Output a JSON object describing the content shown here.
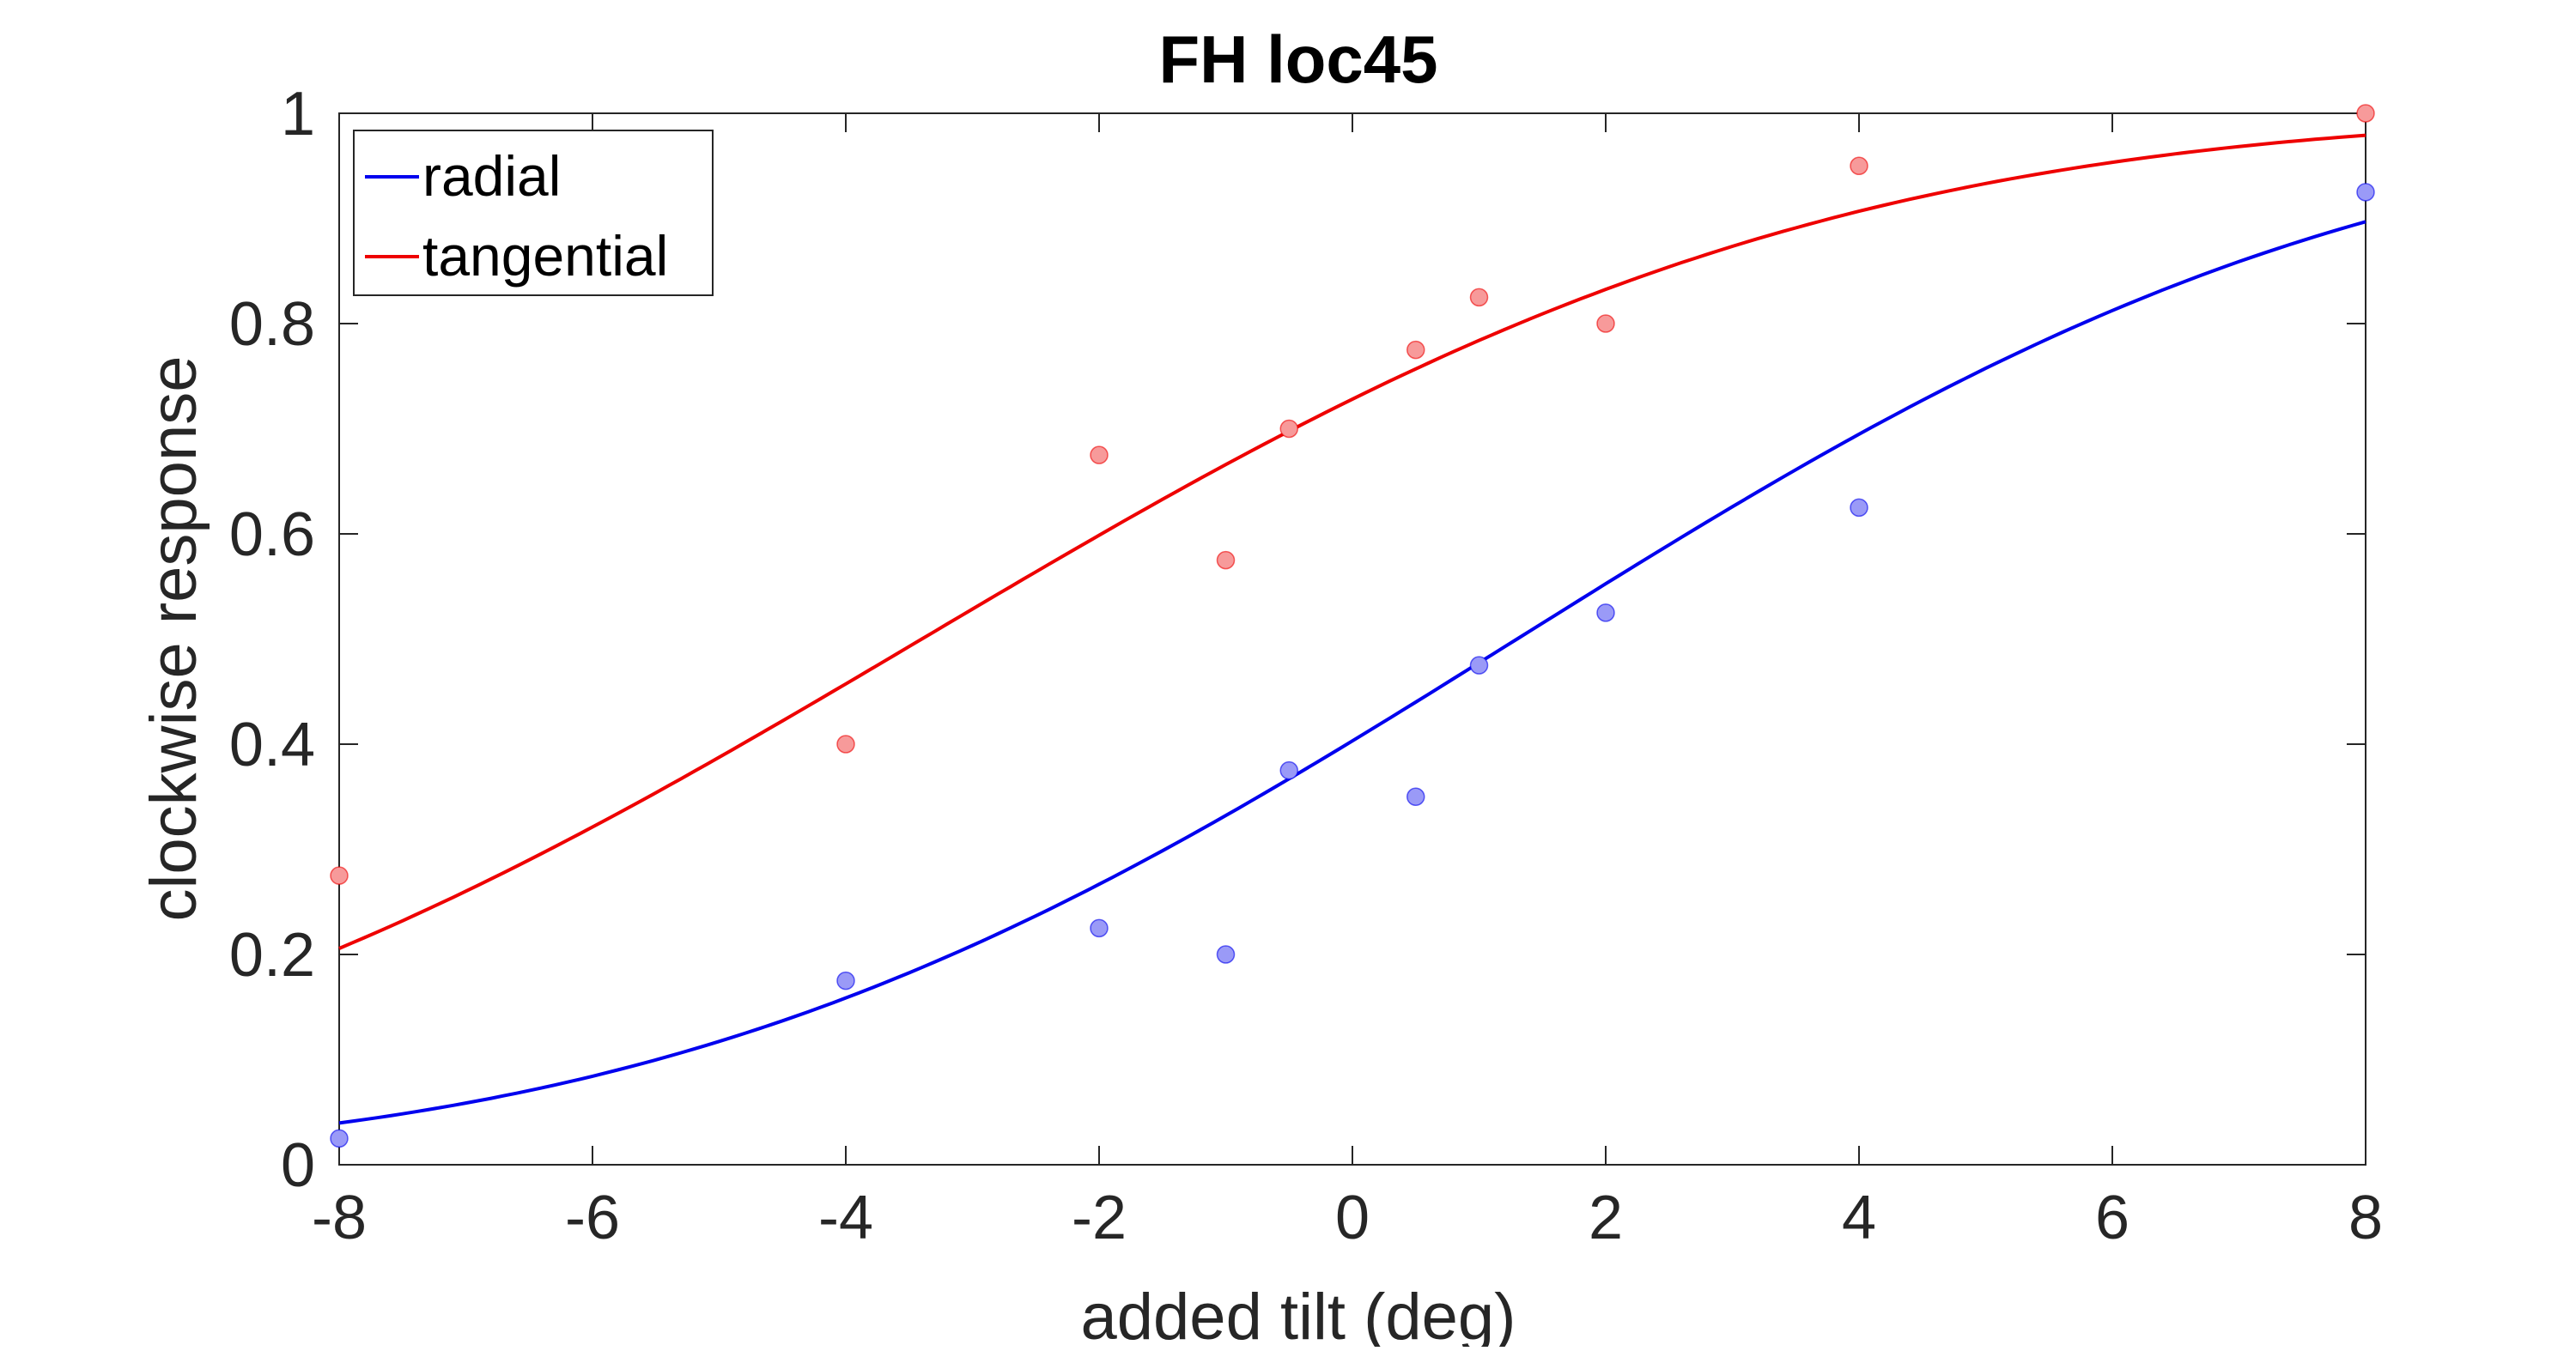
{
  "chart_data": {
    "type": "scatter",
    "title": "FH loc45",
    "xlabel": "added tilt (deg)",
    "ylabel": "clockwise response",
    "xlim": [
      -8,
      8
    ],
    "ylim": [
      0,
      1
    ],
    "xticks": [
      -8,
      -6,
      -4,
      -2,
      0,
      2,
      4,
      6,
      8
    ],
    "xtick_labels": [
      "-8",
      "-6",
      "-4",
      "-2",
      "0",
      "2",
      "4",
      "6",
      "8"
    ],
    "yticks": [
      0,
      0.2,
      0.4,
      0.6,
      0.8,
      1
    ],
    "ytick_labels": [
      "0",
      "0.2",
      "0.4",
      "0.6",
      "0.8",
      "1"
    ],
    "grid": false,
    "legend_position": "top-left",
    "series": [
      {
        "name": "radial",
        "color": "#0000ee",
        "point_fill": "#9a9af7",
        "points": {
          "x": [
            -8,
            -4,
            -2,
            -1,
            -0.5,
            0.5,
            1,
            2,
            4,
            8
          ],
          "y": [
            0.025,
            0.175,
            0.225,
            0.2,
            0.375,
            0.35,
            0.475,
            0.525,
            0.625,
            0.925
          ]
        },
        "fit": {
          "kind": "normal-cdf",
          "mu": 1.3,
          "sigma": 5.3
        }
      },
      {
        "name": "tangential",
        "color": "#ee0000",
        "point_fill": "#f79a9a",
        "points": {
          "x": [
            -8,
            -4,
            -2,
            -1,
            -0.5,
            0.5,
            1,
            2,
            4,
            8
          ],
          "y": [
            0.275,
            0.4,
            0.675,
            0.575,
            0.7,
            0.775,
            0.825,
            0.8,
            0.95,
            1.0
          ]
        },
        "fit": {
          "kind": "normal-cdf",
          "mu": -3.4,
          "sigma": 5.6
        }
      }
    ]
  }
}
